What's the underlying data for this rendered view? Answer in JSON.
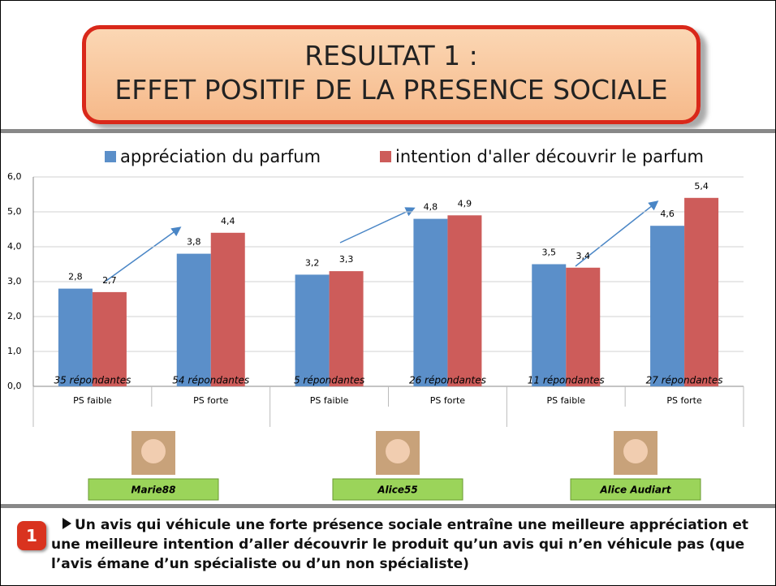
{
  "header": {
    "title": [
      "RESULTAT 1 :",
      "EFFET POSITIF DE LA PRESENCE SOCIALE"
    ]
  },
  "chart_data": {
    "type": "bar",
    "categories": [
      "PS faible",
      "PS forte",
      "PS faible",
      "PS forte",
      "PS faible",
      "PS forte"
    ],
    "annotations": [
      "35 répondantes",
      "54 répondantes",
      "5 répondantes",
      "26 répondantes",
      "11 répondantes",
      "27 répondantes"
    ],
    "groups": [
      "Marie88",
      "Alice55",
      "Alice Audiart"
    ],
    "series": [
      {
        "name": "appréciation du parfum",
        "color": "#5b8fc9",
        "values": [
          2.8,
          3.8,
          3.2,
          4.8,
          3.5,
          4.6
        ],
        "value_labels": [
          "2,8",
          "3,8",
          "3,2",
          "4,8",
          "3,5",
          "4,6"
        ]
      },
      {
        "name": "intention d'aller découvrir le parfum",
        "color": "#cd5c5a",
        "values": [
          2.7,
          4.4,
          3.3,
          4.9,
          3.4,
          5.4
        ],
        "value_labels": [
          "2,7",
          "4,4",
          "3,3",
          "4,9",
          "3,4",
          "5,4"
        ]
      }
    ],
    "ylim": [
      0,
      6
    ],
    "yticks": [
      {
        "value": 0,
        "label": "0,0"
      },
      {
        "value": 1,
        "label": "1,0"
      },
      {
        "value": 2,
        "label": "2,0"
      },
      {
        "value": 3,
        "label": "3,0"
      },
      {
        "value": 4,
        "label": "4,0"
      },
      {
        "value": 5,
        "label": "5,0"
      },
      {
        "value": 6,
        "label": "6,0"
      }
    ],
    "grid": true,
    "legend": "top"
  },
  "footer": {
    "badge": "1",
    "text": "Un avis qui véhicule une forte présence sociale entraîne une meilleure appréciation et une meilleure intention d’aller découvrir le produit qu’un avis qui n’en véhicule pas (que l’avis émane d’un spécialiste ou d’un non spécialiste)"
  }
}
